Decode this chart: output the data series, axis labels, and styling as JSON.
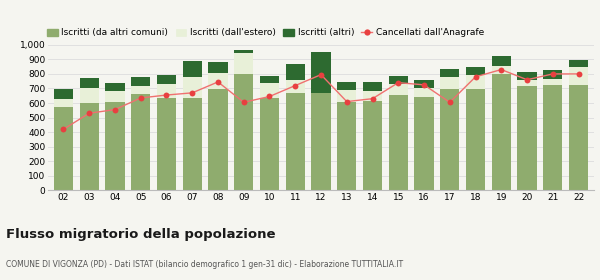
{
  "years": [
    "02",
    "03",
    "04",
    "05",
    "06",
    "07",
    "08",
    "09",
    "10",
    "11",
    "12",
    "13",
    "14",
    "15",
    "16",
    "17",
    "18",
    "19",
    "20",
    "21",
    "22"
  ],
  "iscritti_altri_comuni": [
    575,
    600,
    610,
    665,
    635,
    635,
    695,
    800,
    635,
    670,
    670,
    610,
    615,
    655,
    640,
    695,
    695,
    800,
    715,
    725,
    725
  ],
  "iscritti_estero": [
    55,
    100,
    70,
    55,
    95,
    145,
    110,
    145,
    100,
    90,
    0,
    80,
    65,
    75,
    65,
    85,
    95,
    55,
    45,
    40,
    120
  ],
  "iscritti_altri": [
    65,
    70,
    60,
    60,
    65,
    110,
    80,
    20,
    50,
    110,
    280,
    55,
    65,
    55,
    55,
    55,
    55,
    65,
    55,
    60,
    50
  ],
  "cancellati": [
    420,
    530,
    555,
    635,
    655,
    670,
    745,
    605,
    645,
    720,
    795,
    610,
    630,
    740,
    725,
    605,
    780,
    830,
    760,
    800,
    800
  ],
  "color_comuni": "#8fac6e",
  "color_estero": "#e8f0d8",
  "color_altri": "#2d6a30",
  "color_cancellati": "#e84040",
  "color_cancellati_line": "#f07070",
  "background_color": "#f5f5f0",
  "grid_color": "#dddddd",
  "title": "Flusso migratorio della popolazione",
  "subtitle": "COMUNE DI VIGONZA (PD) - Dati ISTAT (bilancio demografico 1 gen-31 dic) - Elaborazione TUTTITALIA.IT",
  "legend_labels": [
    "Iscritti (da altri comuni)",
    "Iscritti (dall'estero)",
    "Iscritti (altri)",
    "Cancellati dall'Anagrafe"
  ],
  "ylim": [
    0,
    1000
  ]
}
